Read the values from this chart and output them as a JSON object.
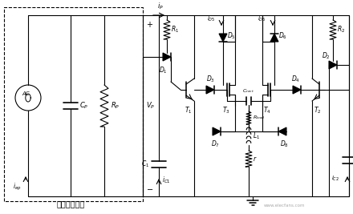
{
  "figsize": [
    4.4,
    2.67
  ],
  "dpi": 100,
  "bg": "#ffffff",
  "lc": "#000000",
  "lw": 0.8,
  "label_bottom": "等效压电陶瓷",
  "watermark": "www.elecfans.com"
}
